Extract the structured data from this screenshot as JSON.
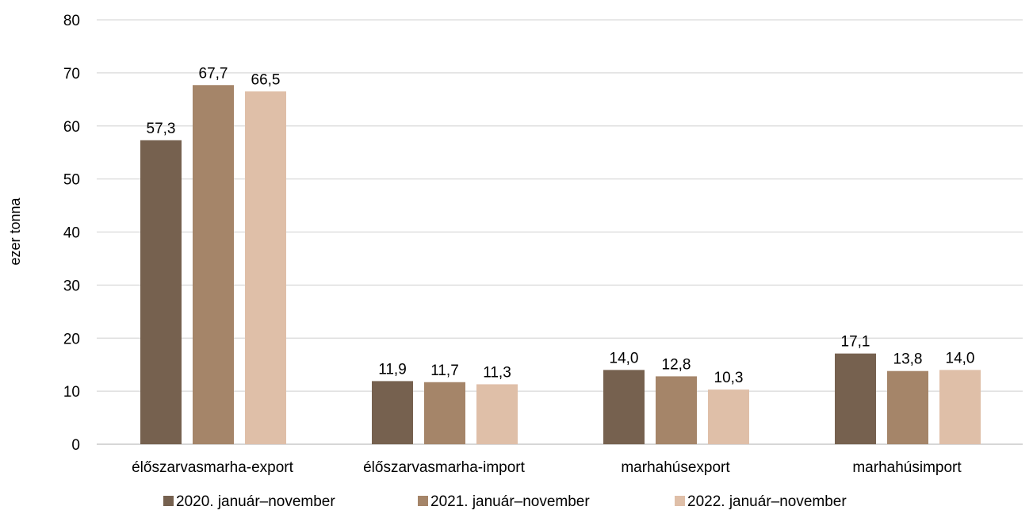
{
  "chart_data": {
    "type": "bar",
    "ylabel": "ezer tonna",
    "ylim": [
      0,
      80
    ],
    "yticks": [
      0,
      10,
      20,
      30,
      40,
      50,
      60,
      70,
      80
    ],
    "grid": true,
    "legend_position": "bottom",
    "categories": [
      "élőszarvasmarha-export",
      "élőszarvasmarha-import",
      "marhahúsexport",
      "marhahúsimport"
    ],
    "series": [
      {
        "name": "2020. január–november",
        "color": "#76614f",
        "values": [
          57.3,
          11.9,
          14.0,
          17.1
        ],
        "labels": [
          "57,3",
          "11,9",
          "14,0",
          "17,1"
        ]
      },
      {
        "name": "2021.  január–november",
        "color": "#a58569",
        "values": [
          67.7,
          11.7,
          12.8,
          13.8
        ],
        "labels": [
          "67,7",
          "11,7",
          "12,8",
          "13,8"
        ]
      },
      {
        "name": "2022.  január–november",
        "color": "#dfbfa8",
        "values": [
          66.5,
          11.3,
          10.3,
          14.0
        ],
        "labels": [
          "66,5",
          "11,3",
          "10,3",
          "14,0"
        ]
      }
    ]
  }
}
